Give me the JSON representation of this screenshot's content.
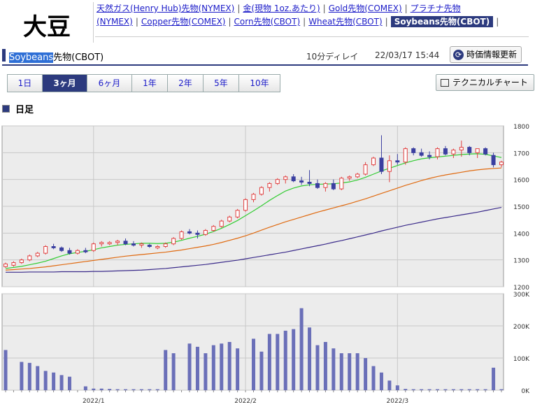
{
  "page": {
    "title": "大豆",
    "nav": [
      {
        "label": "天然ガス(Henry Hub)先物(NYMEX)",
        "active": false
      },
      {
        "label": "金(現物 1oz.あたり)",
        "active": false
      },
      {
        "label": "Gold先物(COMEX)",
        "active": false
      },
      {
        "label": "プラチナ先物(NYMEX)",
        "active": false
      },
      {
        "label": "Copper先物(COMEX)",
        "active": false
      },
      {
        "label": "Corn先物(CBOT)",
        "active": false
      },
      {
        "label": "Wheat先物(CBOT)",
        "active": false
      },
      {
        "label": "Soybeans先物(CBOT)",
        "active": true
      }
    ],
    "instrument_highlight": "Soybeans",
    "instrument_rest": "先物(CBOT)",
    "delay": "10分ディレイ",
    "timestamp": "22/03/17 15:44",
    "refresh_label": "時価情報更新",
    "tabs": [
      "1日",
      "3ヶ月",
      "6ヶ月",
      "1年",
      "2年",
      "5年",
      "10年"
    ],
    "active_tab": "3ヶ月",
    "technical_label": "テクニカルチャート",
    "section_label": "日足"
  },
  "chart_data": {
    "type": "candlestick",
    "price_ylim": [
      1200,
      1800
    ],
    "price_ticks": [
      "1800",
      "1700",
      "1600",
      "1500",
      "1400",
      "1300",
      "1200"
    ],
    "volume_ylim": [
      0,
      300000
    ],
    "volume_ticks": [
      "300K",
      "200K",
      "100K",
      "0K"
    ],
    "x_labels": [
      {
        "label": "2022/1",
        "index": 11
      },
      {
        "label": "2022/2",
        "index": 30
      },
      {
        "label": "2022/3",
        "index": 49
      }
    ],
    "colors": {
      "up": "#e04040",
      "down": "#3a3fa0",
      "ma_short": "#33cc33",
      "ma_mid": "#e06a10",
      "ma_long": "#3a2a8a",
      "volume": "#6a6fb8"
    },
    "candles": [
      [
        1275,
        1290,
        1270,
        1285
      ],
      [
        1280,
        1295,
        1275,
        1290
      ],
      [
        1290,
        1305,
        1285,
        1300
      ],
      [
        1300,
        1320,
        1295,
        1315
      ],
      [
        1315,
        1330,
        1310,
        1325
      ],
      [
        1325,
        1355,
        1320,
        1350
      ],
      [
        1350,
        1360,
        1340,
        1345
      ],
      [
        1345,
        1350,
        1330,
        1335
      ],
      [
        1335,
        1345,
        1320,
        1325
      ],
      [
        1325,
        1340,
        1320,
        1335
      ],
      [
        1335,
        1345,
        1325,
        1330
      ],
      [
        1335,
        1365,
        1330,
        1360
      ],
      [
        1360,
        1370,
        1350,
        1365
      ],
      [
        1360,
        1370,
        1355,
        1365
      ],
      [
        1365,
        1375,
        1355,
        1370
      ],
      [
        1370,
        1380,
        1355,
        1360
      ],
      [
        1360,
        1370,
        1350,
        1355
      ],
      [
        1355,
        1365,
        1345,
        1360
      ],
      [
        1355,
        1360,
        1345,
        1350
      ],
      [
        1345,
        1355,
        1340,
        1350
      ],
      [
        1350,
        1365,
        1345,
        1360
      ],
      [
        1360,
        1385,
        1355,
        1380
      ],
      [
        1380,
        1410,
        1375,
        1405
      ],
      [
        1405,
        1415,
        1395,
        1400
      ],
      [
        1400,
        1410,
        1380,
        1395
      ],
      [
        1395,
        1415,
        1390,
        1410
      ],
      [
        1410,
        1430,
        1405,
        1425
      ],
      [
        1425,
        1450,
        1420,
        1445
      ],
      [
        1445,
        1465,
        1440,
        1460
      ],
      [
        1460,
        1490,
        1455,
        1485
      ],
      [
        1485,
        1530,
        1480,
        1525
      ],
      [
        1525,
        1550,
        1515,
        1545
      ],
      [
        1545,
        1575,
        1540,
        1570
      ],
      [
        1570,
        1590,
        1555,
        1585
      ],
      [
        1585,
        1605,
        1580,
        1600
      ],
      [
        1600,
        1615,
        1585,
        1610
      ],
      [
        1610,
        1620,
        1590,
        1595
      ],
      [
        1595,
        1610,
        1580,
        1590
      ],
      [
        1590,
        1635,
        1575,
        1585
      ],
      [
        1585,
        1600,
        1565,
        1570
      ],
      [
        1570,
        1590,
        1555,
        1585
      ],
      [
        1585,
        1600,
        1560,
        1565
      ],
      [
        1565,
        1610,
        1560,
        1605
      ],
      [
        1605,
        1615,
        1595,
        1610
      ],
      [
        1610,
        1625,
        1605,
        1620
      ],
      [
        1620,
        1665,
        1615,
        1655
      ],
      [
        1655,
        1685,
        1650,
        1680
      ],
      [
        1680,
        1765,
        1620,
        1630
      ],
      [
        1630,
        1690,
        1590,
        1670
      ],
      [
        1670,
        1695,
        1655,
        1665
      ],
      [
        1665,
        1720,
        1655,
        1715
      ],
      [
        1715,
        1720,
        1690,
        1700
      ],
      [
        1700,
        1715,
        1685,
        1690
      ],
      [
        1690,
        1705,
        1675,
        1685
      ],
      [
        1685,
        1720,
        1675,
        1715
      ],
      [
        1715,
        1725,
        1690,
        1695
      ],
      [
        1695,
        1715,
        1680,
        1710
      ],
      [
        1710,
        1745,
        1685,
        1720
      ],
      [
        1720,
        1725,
        1690,
        1700
      ],
      [
        1700,
        1715,
        1680,
        1715
      ],
      [
        1715,
        1720,
        1690,
        1695
      ],
      [
        1690,
        1700,
        1645,
        1655
      ],
      [
        1655,
        1670,
        1645,
        1665
      ]
    ],
    "ma_short": [
      1268,
      1272,
      1276,
      1282,
      1288,
      1295,
      1305,
      1315,
      1323,
      1328,
      1332,
      1338,
      1345,
      1350,
      1355,
      1358,
      1360,
      1362,
      1362,
      1361,
      1362,
      1366,
      1373,
      1381,
      1388,
      1396,
      1406,
      1418,
      1432,
      1447,
      1465,
      1483,
      1502,
      1522,
      1540,
      1557,
      1568,
      1576,
      1580,
      1582,
      1583,
      1584,
      1587,
      1591,
      1598,
      1608,
      1620,
      1632,
      1642,
      1652,
      1662,
      1670,
      1677,
      1681,
      1684,
      1687,
      1690,
      1693,
      1695,
      1696,
      1694,
      1688,
      1682
    ],
    "ma_mid": [
      1262,
      1264,
      1266,
      1268,
      1271,
      1274,
      1278,
      1282,
      1286,
      1290,
      1294,
      1298,
      1302,
      1306,
      1310,
      1314,
      1317,
      1320,
      1323,
      1326,
      1329,
      1333,
      1337,
      1342,
      1347,
      1352,
      1358,
      1365,
      1373,
      1381,
      1390,
      1400,
      1411,
      1422,
      1432,
      1442,
      1451,
      1460,
      1469,
      1478,
      1486,
      1494,
      1502,
      1510,
      1519,
      1528,
      1538,
      1548,
      1558,
      1568,
      1578,
      1587,
      1596,
      1604,
      1611,
      1617,
      1622,
      1627,
      1632,
      1636,
      1639,
      1641,
      1643
    ],
    "ma_long": [
      1254,
      1254,
      1254,
      1255,
      1255,
      1255,
      1255,
      1256,
      1256,
      1256,
      1256,
      1257,
      1257,
      1258,
      1259,
      1260,
      1261,
      1262,
      1264,
      1266,
      1268,
      1271,
      1274,
      1277,
      1280,
      1283,
      1287,
      1291,
      1295,
      1299,
      1304,
      1309,
      1314,
      1319,
      1324,
      1329,
      1335,
      1341,
      1347,
      1353,
      1359,
      1366,
      1372,
      1379,
      1386,
      1393,
      1400,
      1408,
      1415,
      1422,
      1429,
      1435,
      1441,
      1447,
      1453,
      1458,
      1463,
      1468,
      1473,
      1478,
      1484,
      1490,
      1496
    ],
    "volume": [
      125000,
      0,
      88000,
      85000,
      75000,
      60000,
      55000,
      47000,
      42000,
      0,
      12000,
      5000,
      5000,
      4000,
      3000,
      3000,
      3000,
      3000,
      3000,
      3000,
      125000,
      115000,
      0,
      145000,
      135000,
      115000,
      140000,
      145000,
      150000,
      130000,
      0,
      160000,
      120000,
      175000,
      175000,
      185000,
      190000,
      255000,
      195000,
      140000,
      150000,
      130000,
      115000,
      115000,
      115000,
      100000,
      75000,
      55000,
      30000,
      15000,
      4000,
      3000,
      3000,
      3000,
      3000,
      3000,
      3000,
      3000,
      3000,
      3000,
      3000,
      70000,
      3000
    ]
  }
}
